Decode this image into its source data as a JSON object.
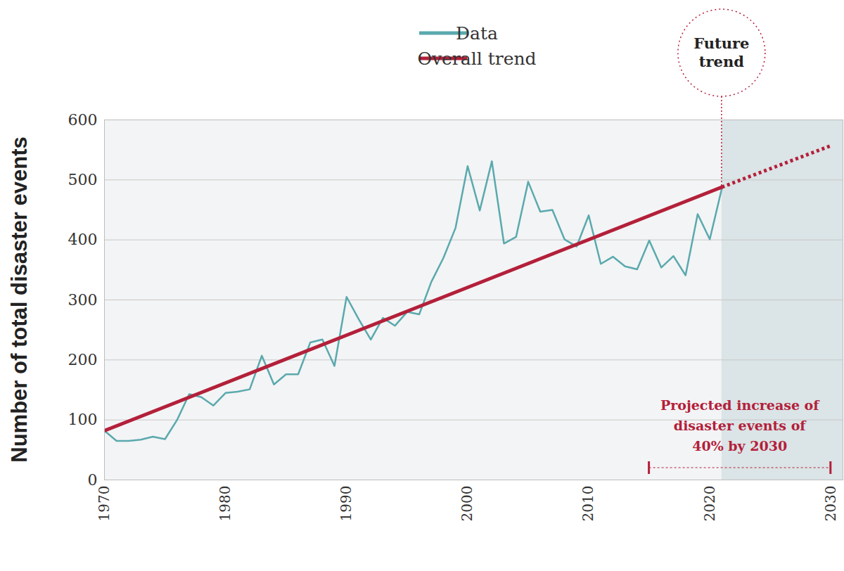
{
  "chart_data": {
    "type": "line",
    "x": [
      1970,
      1971,
      1972,
      1973,
      1974,
      1975,
      1976,
      1977,
      1978,
      1979,
      1980,
      1981,
      1982,
      1983,
      1984,
      1985,
      1986,
      1987,
      1988,
      1989,
      1990,
      1991,
      1992,
      1993,
      1994,
      1995,
      1996,
      1997,
      1998,
      1999,
      2000,
      2001,
      2002,
      2003,
      2004,
      2005,
      2006,
      2007,
      2008,
      2009,
      2010,
      2011,
      2012,
      2013,
      2014,
      2015,
      2016,
      2017,
      2018,
      2019,
      2020,
      2021
    ],
    "series": [
      {
        "name": "Data",
        "color": "#5aa9ae",
        "line_style": "solid",
        "values": [
          82,
          65,
          65,
          67,
          72,
          68,
          100,
          143,
          138,
          124,
          145,
          147,
          151,
          207,
          159,
          176,
          176,
          229,
          234,
          190,
          305,
          268,
          234,
          270,
          257,
          280,
          276,
          330,
          370,
          420,
          523,
          449,
          531,
          394,
          405,
          497,
          447,
          450,
          401,
          389,
          441,
          360,
          372,
          356,
          351,
          399,
          354,
          373,
          341,
          443,
          401,
          486
        ]
      },
      {
        "name": "Overall trend",
        "color": "#b3203a",
        "line_style": "solid",
        "x": [
          1970,
          2021
        ],
        "values": [
          82,
          488
        ]
      },
      {
        "name": "Future trend",
        "color": "#b3203a",
        "line_style": "dotted",
        "x": [
          2021,
          2030
        ],
        "values": [
          488,
          557
        ]
      }
    ],
    "xlim": [
      1970,
      2031
    ],
    "xticks": [
      1970,
      1980,
      1990,
      2000,
      2010,
      2020,
      2030
    ],
    "ylim": [
      0,
      600
    ],
    "yticks": [
      0,
      100,
      200,
      300,
      400,
      500,
      600
    ],
    "ylabel": "Number of total disaster events",
    "grid": true,
    "legend": "top",
    "annotations": [
      {
        "text": "Projected increase of\ndisaster events of\n40% by 2030",
        "x": [
          2015,
          2030
        ]
      }
    ]
  }
}
